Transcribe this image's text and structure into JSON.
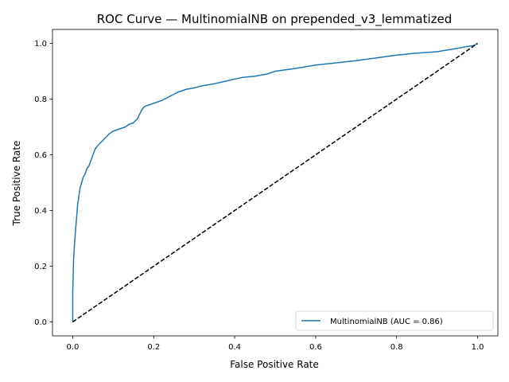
{
  "chart_data": {
    "type": "line",
    "title": "ROC Curve — MultinomialNB on prepended_v3_lemmatized",
    "xlabel": "False Positive Rate",
    "ylabel": "True Positive Rate",
    "xlim": [
      -0.05,
      1.05
    ],
    "ylim": [
      -0.05,
      1.05
    ],
    "xticks": [
      0.0,
      0.2,
      0.4,
      0.6,
      0.8,
      1.0
    ],
    "yticks": [
      0.0,
      0.2,
      0.4,
      0.6,
      0.8,
      1.0
    ],
    "xtick_labels": [
      "0.0",
      "0.2",
      "0.4",
      "0.6",
      "0.8",
      "1.0"
    ],
    "ytick_labels": [
      "0.0",
      "0.2",
      "0.4",
      "0.6",
      "0.8",
      "1.0"
    ],
    "grid": false,
    "legend_position": "lower-right",
    "series": [
      {
        "name": "MultinomialNB (AUC = 0.86)",
        "color": "#1f77b4",
        "style": "solid",
        "x": [
          0.0,
          0.0,
          0.002,
          0.004,
          0.006,
          0.008,
          0.01,
          0.012,
          0.015,
          0.018,
          0.022,
          0.026,
          0.03,
          0.035,
          0.04,
          0.045,
          0.05,
          0.055,
          0.06,
          0.07,
          0.08,
          0.09,
          0.1,
          0.11,
          0.12,
          0.13,
          0.14,
          0.15,
          0.16,
          0.165,
          0.17,
          0.175,
          0.18,
          0.19,
          0.2,
          0.22,
          0.24,
          0.26,
          0.28,
          0.3,
          0.32,
          0.35,
          0.38,
          0.4,
          0.42,
          0.45,
          0.48,
          0.5,
          0.55,
          0.6,
          0.65,
          0.7,
          0.75,
          0.8,
          0.85,
          0.9,
          0.92,
          0.95,
          0.97,
          0.99,
          1.0
        ],
        "y": [
          0.0,
          0.1,
          0.22,
          0.27,
          0.31,
          0.35,
          0.38,
          0.42,
          0.45,
          0.48,
          0.5,
          0.52,
          0.53,
          0.55,
          0.56,
          0.58,
          0.6,
          0.62,
          0.63,
          0.645,
          0.66,
          0.675,
          0.685,
          0.69,
          0.695,
          0.7,
          0.71,
          0.715,
          0.73,
          0.745,
          0.76,
          0.77,
          0.775,
          0.78,
          0.785,
          0.795,
          0.81,
          0.825,
          0.835,
          0.84,
          0.848,
          0.855,
          0.865,
          0.872,
          0.878,
          0.882,
          0.89,
          0.9,
          0.91,
          0.922,
          0.93,
          0.938,
          0.948,
          0.958,
          0.965,
          0.97,
          0.975,
          0.982,
          0.988,
          0.992,
          1.0
        ]
      },
      {
        "name": "",
        "color": "#000000",
        "style": "dashed",
        "x": [
          0.0,
          1.0
        ],
        "y": [
          0.0,
          1.0
        ]
      }
    ]
  }
}
